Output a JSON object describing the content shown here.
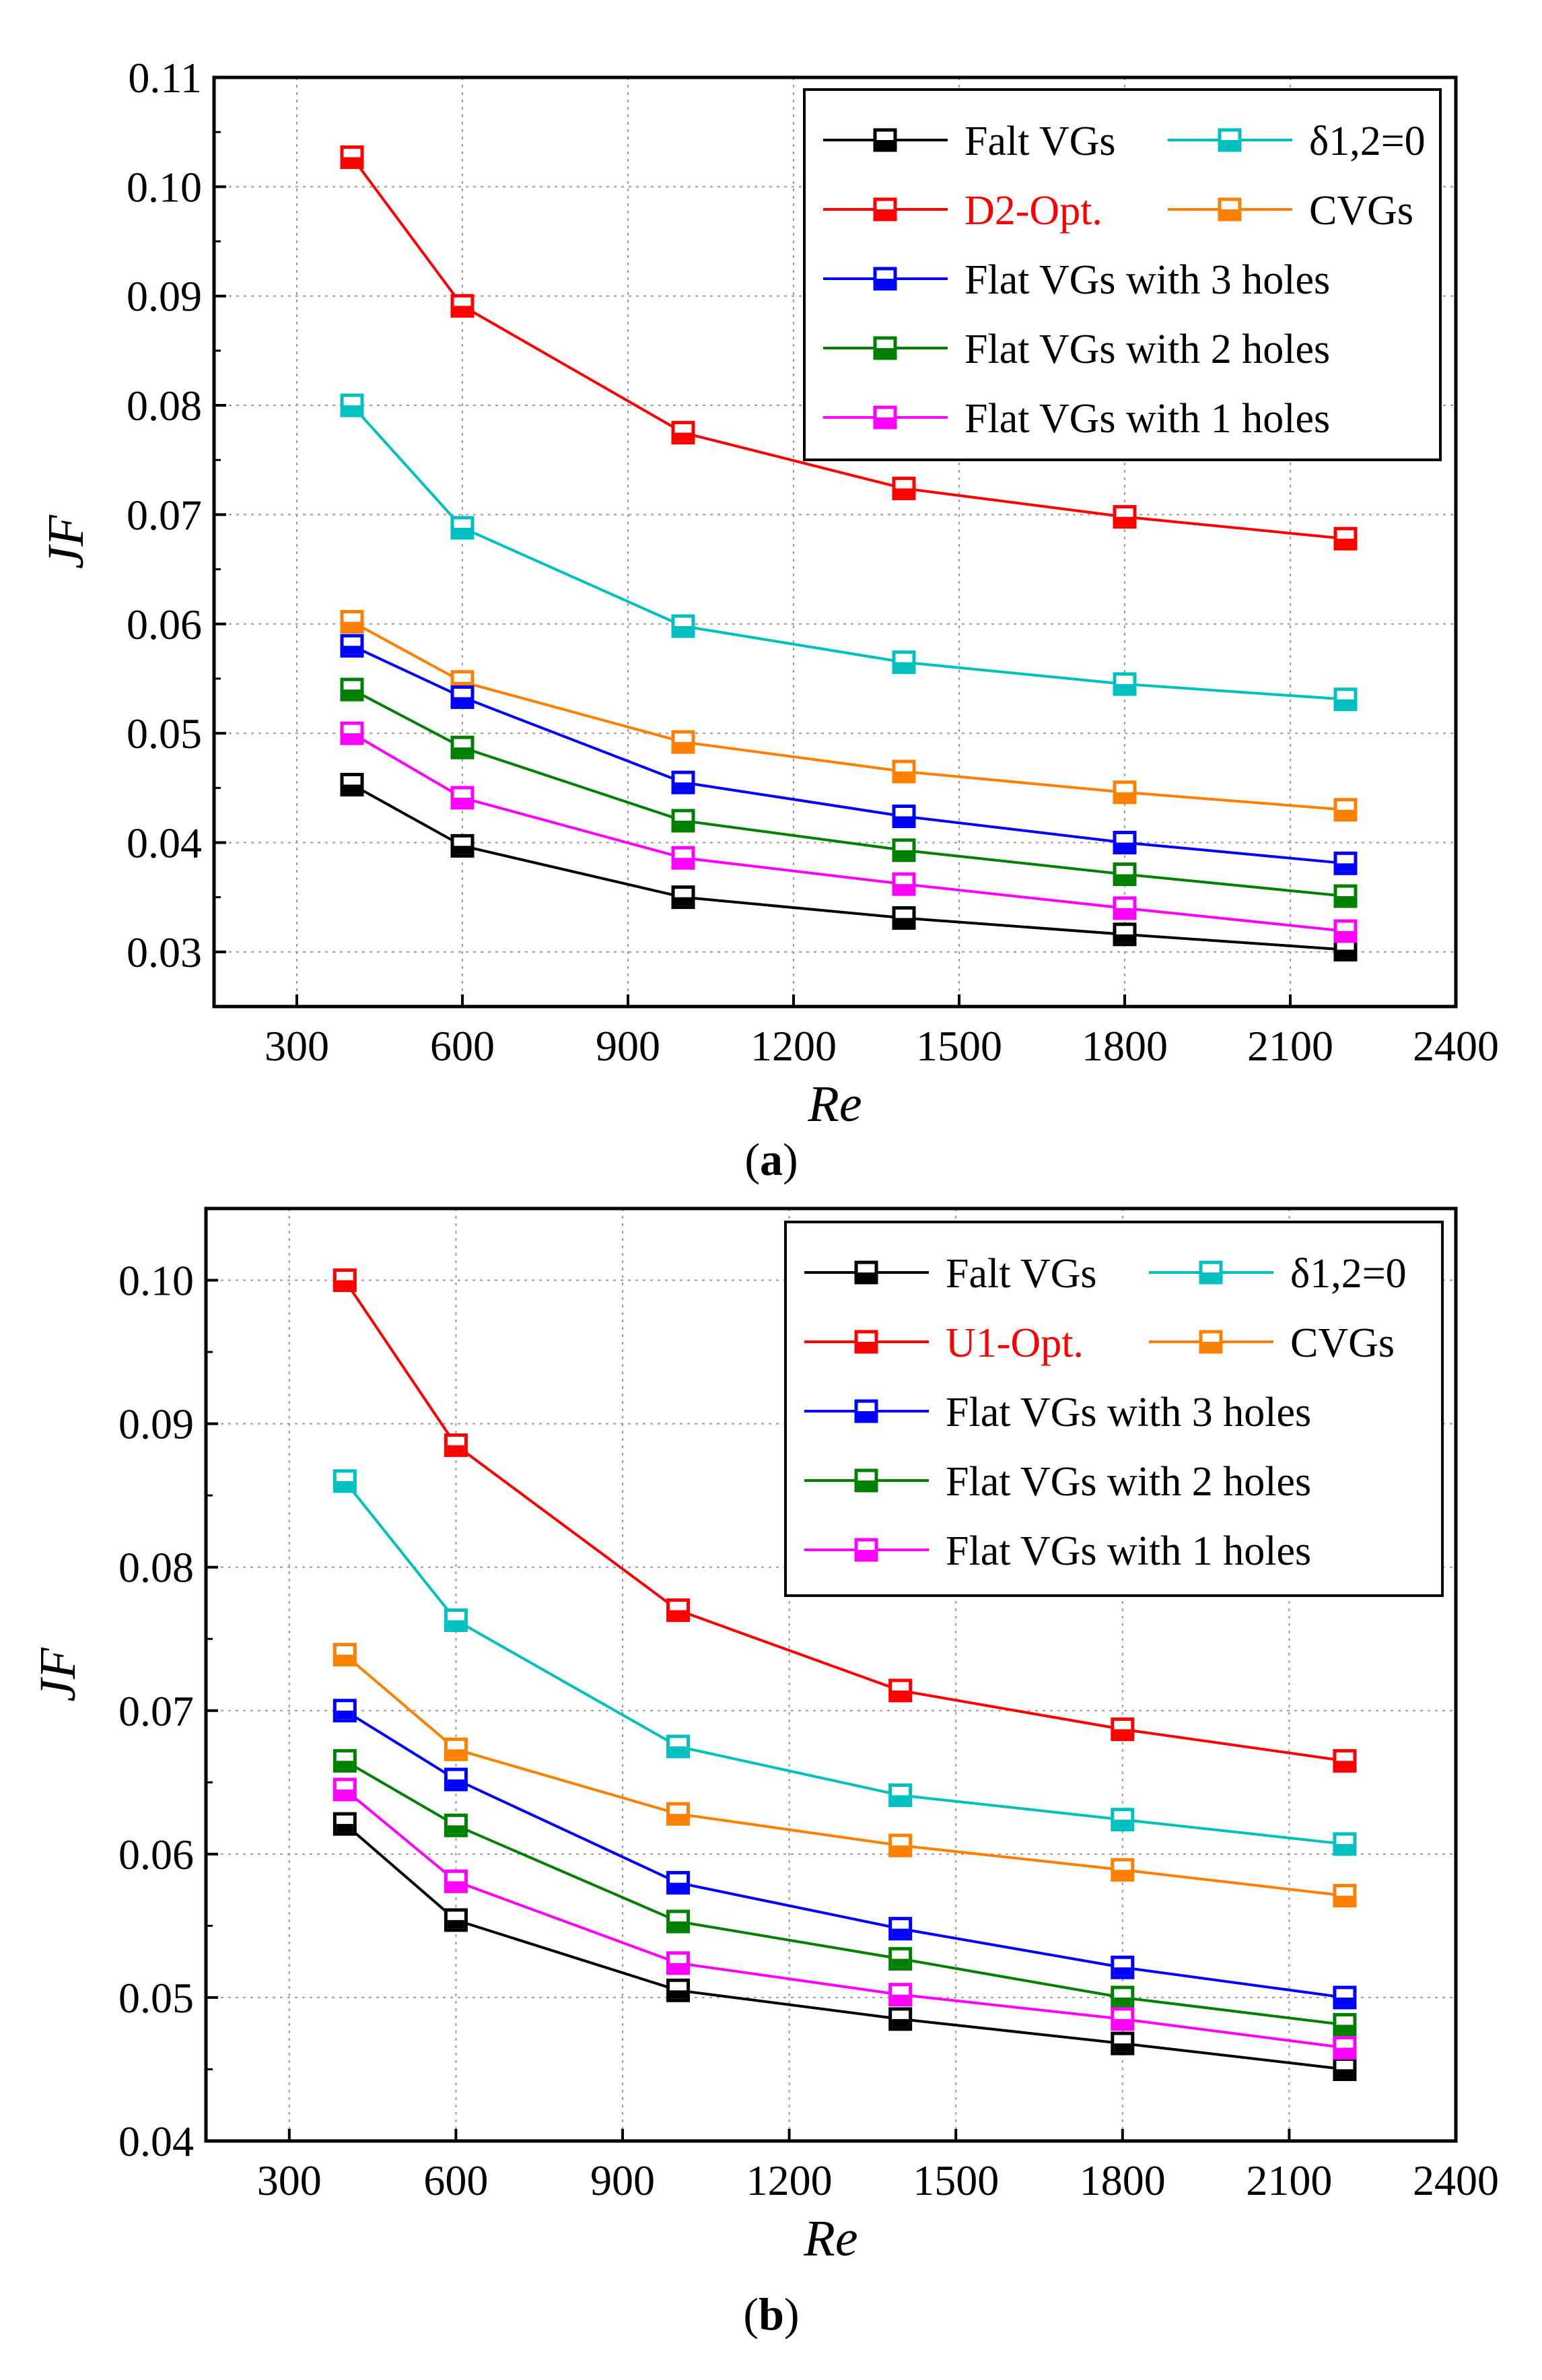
{
  "chart_data": [
    {
      "type": "line",
      "panel_label": "a",
      "xlabel": "Re",
      "ylabel": "JF",
      "xlim": [
        150,
        2400
      ],
      "ylim": [
        0.025,
        0.11
      ],
      "xticks": [
        300,
        600,
        900,
        1200,
        1500,
        1800,
        2100,
        2400
      ],
      "yticks": [
        0.03,
        0.04,
        0.05,
        0.06,
        0.07,
        0.08,
        0.09,
        0.1,
        0.11
      ],
      "x": [
        400,
        600,
        1000,
        1400,
        1800,
        2200
      ],
      "grid": true,
      "legend_position": "top-right",
      "series": [
        {
          "name": "Falt VGs",
          "color": "#000000",
          "label_color": "#000000",
          "values": [
            0.0453,
            0.0397,
            0.035,
            0.0331,
            0.0316,
            0.0302
          ]
        },
        {
          "name": "δ1,2=0",
          "color": "#00c0c0",
          "label_color": "#000000",
          "values": [
            0.08,
            0.0688,
            0.0598,
            0.0565,
            0.0545,
            0.0531
          ]
        },
        {
          "name": "D2-Opt.",
          "color": "#ff0000",
          "label_color": "#ff0000",
          "values": [
            0.1027,
            0.0891,
            0.0775,
            0.0724,
            0.0698,
            0.0678
          ]
        },
        {
          "name": "CVGs",
          "color": "#ff8000",
          "label_color": "#000000",
          "values": [
            0.0602,
            0.0547,
            0.0492,
            0.0465,
            0.0446,
            0.043
          ]
        },
        {
          "name": "Flat VGs with 3 holes",
          "color": "#0000ff",
          "label_color": "#000000",
          "values": [
            0.058,
            0.0533,
            0.0455,
            0.0424,
            0.04,
            0.0381
          ]
        },
        {
          "name": "Flat VGs with 2 holes",
          "color": "#008000",
          "label_color": "#000000",
          "values": [
            0.054,
            0.0487,
            0.042,
            0.0393,
            0.0371,
            0.0351
          ]
        },
        {
          "name": "Flat VGs with 1 holes",
          "color": "#ff00ff",
          "label_color": "#000000",
          "values": [
            0.05,
            0.0441,
            0.0386,
            0.0362,
            0.034,
            0.0319
          ]
        }
      ]
    },
    {
      "type": "line",
      "panel_label": "b",
      "xlabel": "Re",
      "ylabel": "JF",
      "xlim": [
        150,
        2400
      ],
      "ylim": [
        0.04,
        0.105
      ],
      "xticks": [
        300,
        600,
        900,
        1200,
        1500,
        1800,
        2100,
        2400
      ],
      "yticks": [
        0.04,
        0.05,
        0.06,
        0.07,
        0.08,
        0.09,
        0.1
      ],
      "x": [
        400,
        600,
        1000,
        1400,
        1800,
        2200
      ],
      "grid": true,
      "legend_position": "top-right",
      "series": [
        {
          "name": "Falt VGs",
          "color": "#000000",
          "label_color": "#000000",
          "values": [
            0.0621,
            0.0554,
            0.0505,
            0.0485,
            0.0468,
            0.045
          ]
        },
        {
          "name": "δ1,2=0",
          "color": "#00c0c0",
          "label_color": "#000000",
          "values": [
            0.086,
            0.0763,
            0.0675,
            0.0641,
            0.0624,
            0.0607
          ]
        },
        {
          "name": "U1-Opt.",
          "color": "#ff0000",
          "label_color": "#ff0000",
          "values": [
            0.1,
            0.0885,
            0.077,
            0.0714,
            0.0687,
            0.0665
          ]
        },
        {
          "name": "CVGs",
          "color": "#ff8000",
          "label_color": "#000000",
          "values": [
            0.0739,
            0.0673,
            0.0628,
            0.0606,
            0.0589,
            0.0571
          ]
        },
        {
          "name": "Flat VGs with 3 holes",
          "color": "#0000ff",
          "label_color": "#000000",
          "values": [
            0.07,
            0.0652,
            0.058,
            0.0548,
            0.0521,
            0.05
          ]
        },
        {
          "name": "Flat VGs with 2 holes",
          "color": "#008000",
          "label_color": "#000000",
          "values": [
            0.0665,
            0.062,
            0.0553,
            0.0527,
            0.05,
            0.0481
          ]
        },
        {
          "name": "Flat VGs with 1 holes",
          "color": "#ff00ff",
          "label_color": "#000000",
          "values": [
            0.0645,
            0.0581,
            0.0524,
            0.0502,
            0.0485,
            0.0465
          ]
        }
      ]
    }
  ]
}
